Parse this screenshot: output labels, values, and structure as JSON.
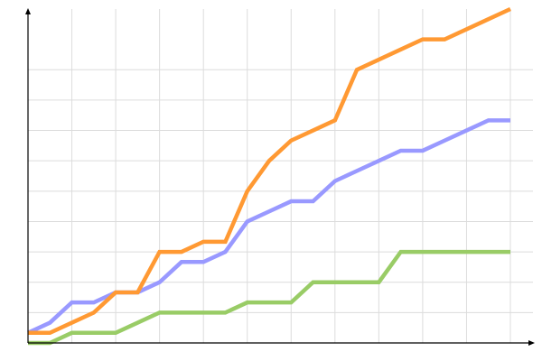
{
  "chart_data": {
    "type": "line",
    "title": "",
    "xlabel": "",
    "ylabel": "",
    "xlim": [
      0,
      22
    ],
    "ylim": [
      0,
      33
    ],
    "grid": true,
    "x_grid_step": 2,
    "y_grid_values": [
      3,
      6,
      9,
      12,
      15,
      18,
      21,
      24,
      27
    ],
    "x": [
      0,
      1,
      2,
      3,
      4,
      5,
      6,
      7,
      8,
      9,
      10,
      11,
      12,
      13,
      14,
      15,
      16,
      17,
      18,
      19,
      20,
      21,
      22
    ],
    "series": [
      {
        "color": "#99cc66",
        "values": [
          0,
          0,
          1,
          1,
          1,
          2,
          3,
          3,
          3,
          3,
          4,
          4,
          4,
          6,
          6,
          6,
          6,
          9,
          9,
          9,
          9,
          9,
          9
        ]
      },
      {
        "color": "#9999ff",
        "values": [
          1,
          2,
          4,
          4,
          5,
          5,
          6,
          8,
          8,
          9,
          12,
          13,
          14,
          14,
          16,
          17,
          18,
          19,
          19,
          20,
          21,
          22,
          22
        ]
      },
      {
        "color": "#ff9933",
        "values": [
          1,
          1,
          2,
          3,
          5,
          5,
          9,
          9,
          10,
          10,
          15,
          18,
          20,
          21,
          22,
          27,
          28,
          29,
          30,
          30,
          31,
          32,
          33
        ]
      }
    ]
  }
}
